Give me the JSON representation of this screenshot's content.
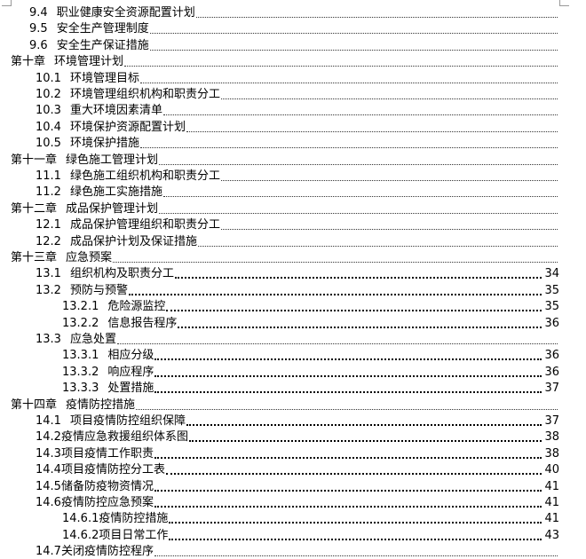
{
  "toc": [
    {
      "level": 2,
      "num": "9.4",
      "title": "职业健康安全资源配置计划",
      "page": ""
    },
    {
      "level": 2,
      "num": "9.5",
      "title": "安全生产管理制度",
      "page": ""
    },
    {
      "level": 2,
      "num": "9.6",
      "title": "安全生产保证措施",
      "page": ""
    },
    {
      "level": 1,
      "num": "第十章",
      "title": "环境管理计划",
      "page": ""
    },
    {
      "level": 2,
      "num": "10.1",
      "title": "环境管理目标",
      "page": ""
    },
    {
      "level": 2,
      "num": "10.2",
      "title": "环境管理组织机构和职责分工",
      "page": ""
    },
    {
      "level": 2,
      "num": "10.3",
      "title": "重大环境因素清单",
      "page": ""
    },
    {
      "level": 2,
      "num": "10.4",
      "title": "环境保护资源配置计划",
      "page": ""
    },
    {
      "level": 2,
      "num": "10.5",
      "title": "环境保护措施",
      "page": ""
    },
    {
      "level": 1,
      "num": "第十一章",
      "title": "绿色施工管理计划",
      "page": ""
    },
    {
      "level": 2,
      "num": "11.1",
      "title": "绿色施工组织机构和职责分工",
      "page": ""
    },
    {
      "level": 2,
      "num": "11.2",
      "title": "绿色施工实施措施",
      "page": ""
    },
    {
      "level": 1,
      "num": "第十二章",
      "title": "成品保护管理计划",
      "page": ""
    },
    {
      "level": 2,
      "num": "12.1",
      "title": "成品保护管理组织和职责分工",
      "page": ""
    },
    {
      "level": 2,
      "num": "12.2",
      "title": "成品保护计划及保证措施",
      "page": ""
    },
    {
      "level": 1,
      "num": "第十三章",
      "title": "应急预案",
      "page": ""
    },
    {
      "level": 2,
      "num": "13.1",
      "title": "组织机构及职责分工",
      "page": "34"
    },
    {
      "level": 2,
      "num": "13.2",
      "title": "预防与预警",
      "page": "35"
    },
    {
      "level": 3,
      "num": "13.2.1",
      "title": "危险源监控",
      "page": "35"
    },
    {
      "level": 3,
      "num": "13.2.2",
      "title": "信息报告程序",
      "page": "36"
    },
    {
      "level": 2,
      "num": "13.3",
      "title": "应急处置",
      "page": ""
    },
    {
      "level": 3,
      "num": "13.3.1",
      "title": "相应分级",
      "page": "36"
    },
    {
      "level": 3,
      "num": "13.3.2",
      "title": "响应程序",
      "page": "36"
    },
    {
      "level": 3,
      "num": "13.3.3",
      "title": "处置措施",
      "page": "37"
    },
    {
      "level": 1,
      "num": "第十四章",
      "title": "疫情防控措施",
      "page": ""
    },
    {
      "level": 2,
      "num": "14.1",
      "title": "项目疫情防控组织保障",
      "page": "37"
    },
    {
      "level": 2,
      "num": "14.2",
      "title": "疫情应急救援组织体系图",
      "page": "38",
      "tight": true
    },
    {
      "level": 2,
      "num": "14.3",
      "title": "项目疫情工作职责",
      "page": "38",
      "tight": true
    },
    {
      "level": 2,
      "num": "14.4",
      "title": "项目疫情防控分工表",
      "page": "40",
      "tight": true
    },
    {
      "level": 2,
      "num": "14.5",
      "title": "储备防疫物资情况",
      "page": "41",
      "tight": true
    },
    {
      "level": 2,
      "num": "14.6",
      "title": "疫情防控应急预案",
      "page": "41",
      "tight": true
    },
    {
      "level": 3,
      "num": "14.6.1",
      "title": "疫情防控措施",
      "page": "41",
      "tight": true
    },
    {
      "level": 3,
      "num": "14.6.2",
      "title": "项目日常工作",
      "page": "43",
      "tight": true
    },
    {
      "level": 2,
      "num": "14.7",
      "title": "关闭疫情防控程序",
      "page": "",
      "tight": true
    }
  ]
}
